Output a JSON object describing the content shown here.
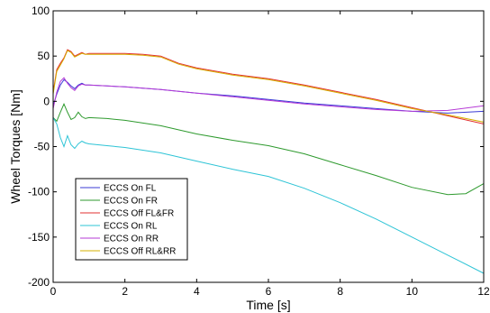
{
  "chart_data": {
    "type": "line",
    "title": "",
    "xlabel": "Time [s]",
    "ylabel": "Wheel Torques [Nm]",
    "xlim": [
      0,
      12
    ],
    "ylim": [
      -200,
      100
    ],
    "xticks": [
      0,
      2,
      4,
      6,
      8,
      10,
      12
    ],
    "yticks": [
      100,
      50,
      0,
      -50,
      -100,
      -150,
      -200
    ],
    "grid": false,
    "legend_position": "lower-left",
    "series": [
      {
        "name": "ECCS On FL",
        "color": "#3b3bd6",
        "x": [
          0,
          0.1,
          0.2,
          0.3,
          0.4,
          0.5,
          0.6,
          0.7,
          0.8,
          0.9,
          1.0,
          1.5,
          2,
          3,
          4,
          5,
          6,
          7,
          8,
          9,
          10,
          11,
          12
        ],
        "y": [
          -5,
          8,
          18,
          24,
          21,
          17,
          14,
          18,
          20,
          18,
          18,
          17,
          16,
          13,
          9,
          6,
          2,
          -2,
          -5,
          -8,
          -11,
          -13,
          -11
        ]
      },
      {
        "name": "ECCS On FR",
        "color": "#2e9a2e",
        "x": [
          0,
          0.1,
          0.2,
          0.3,
          0.4,
          0.5,
          0.6,
          0.7,
          0.8,
          0.9,
          1.0,
          1.5,
          2,
          3,
          4,
          5,
          6,
          7,
          8,
          9,
          10,
          11,
          11.5,
          12
        ],
        "y": [
          -18,
          -22,
          -12,
          -3,
          -12,
          -20,
          -18,
          -12,
          -17,
          -19,
          -18,
          -19,
          -21,
          -27,
          -36,
          -43,
          -49,
          -58,
          -70,
          -82,
          -95,
          -103,
          -102,
          -91
        ]
      },
      {
        "name": "ECCS Off FL&FR",
        "color": "#e23030",
        "x": [
          0,
          0.1,
          0.2,
          0.3,
          0.4,
          0.5,
          0.6,
          0.7,
          0.8,
          0.9,
          1.0,
          1.5,
          2,
          2.5,
          3,
          3.5,
          4,
          5,
          6,
          7,
          8,
          9,
          10,
          11,
          12
        ],
        "y": [
          10,
          35,
          42,
          48,
          57,
          55,
          50,
          52,
          54,
          52,
          53,
          53,
          53,
          52,
          50,
          42,
          37,
          30,
          25,
          18,
          10,
          2,
          -7,
          -16,
          -25
        ]
      },
      {
        "name": "ECCS On RL",
        "color": "#2ec4d6",
        "x": [
          0,
          0.1,
          0.2,
          0.3,
          0.4,
          0.5,
          0.6,
          0.7,
          0.8,
          0.9,
          1.0,
          1.5,
          2,
          3,
          4,
          5,
          6,
          7,
          8,
          9,
          10,
          11,
          12
        ],
        "y": [
          -18,
          -25,
          -40,
          -50,
          -38,
          -48,
          -52,
          -47,
          -44,
          -46,
          -47,
          -49,
          -51,
          -57,
          -66,
          -75,
          -83,
          -96,
          -112,
          -130,
          -150,
          -170,
          -190
        ]
      },
      {
        "name": "ECCS On RR",
        "color": "#b63ad6",
        "x": [
          0,
          0.1,
          0.2,
          0.3,
          0.4,
          0.5,
          0.6,
          0.7,
          0.8,
          0.9,
          1.0,
          1.5,
          2,
          3,
          4,
          5,
          6,
          7,
          8,
          9,
          10,
          11,
          12
        ],
        "y": [
          -8,
          10,
          22,
          26,
          20,
          15,
          12,
          17,
          19,
          18,
          18,
          17,
          16,
          13,
          9,
          5,
          1,
          -3,
          -6,
          -9,
          -11,
          -10,
          -5
        ]
      },
      {
        "name": "ECCS Off RL&RR",
        "color": "#d6b000",
        "x": [
          0,
          0.1,
          0.2,
          0.3,
          0.4,
          0.5,
          0.6,
          0.7,
          0.8,
          0.9,
          1.0,
          1.5,
          2,
          2.5,
          3,
          3.5,
          4,
          5,
          6,
          7,
          8,
          9,
          10,
          11,
          12
        ],
        "y": [
          8,
          33,
          40,
          47,
          56,
          54,
          49,
          51,
          53,
          52,
          52,
          52,
          52,
          51,
          49,
          41,
          36,
          29,
          24,
          17,
          9,
          1,
          -8,
          -15,
          -23
        ]
      }
    ]
  }
}
